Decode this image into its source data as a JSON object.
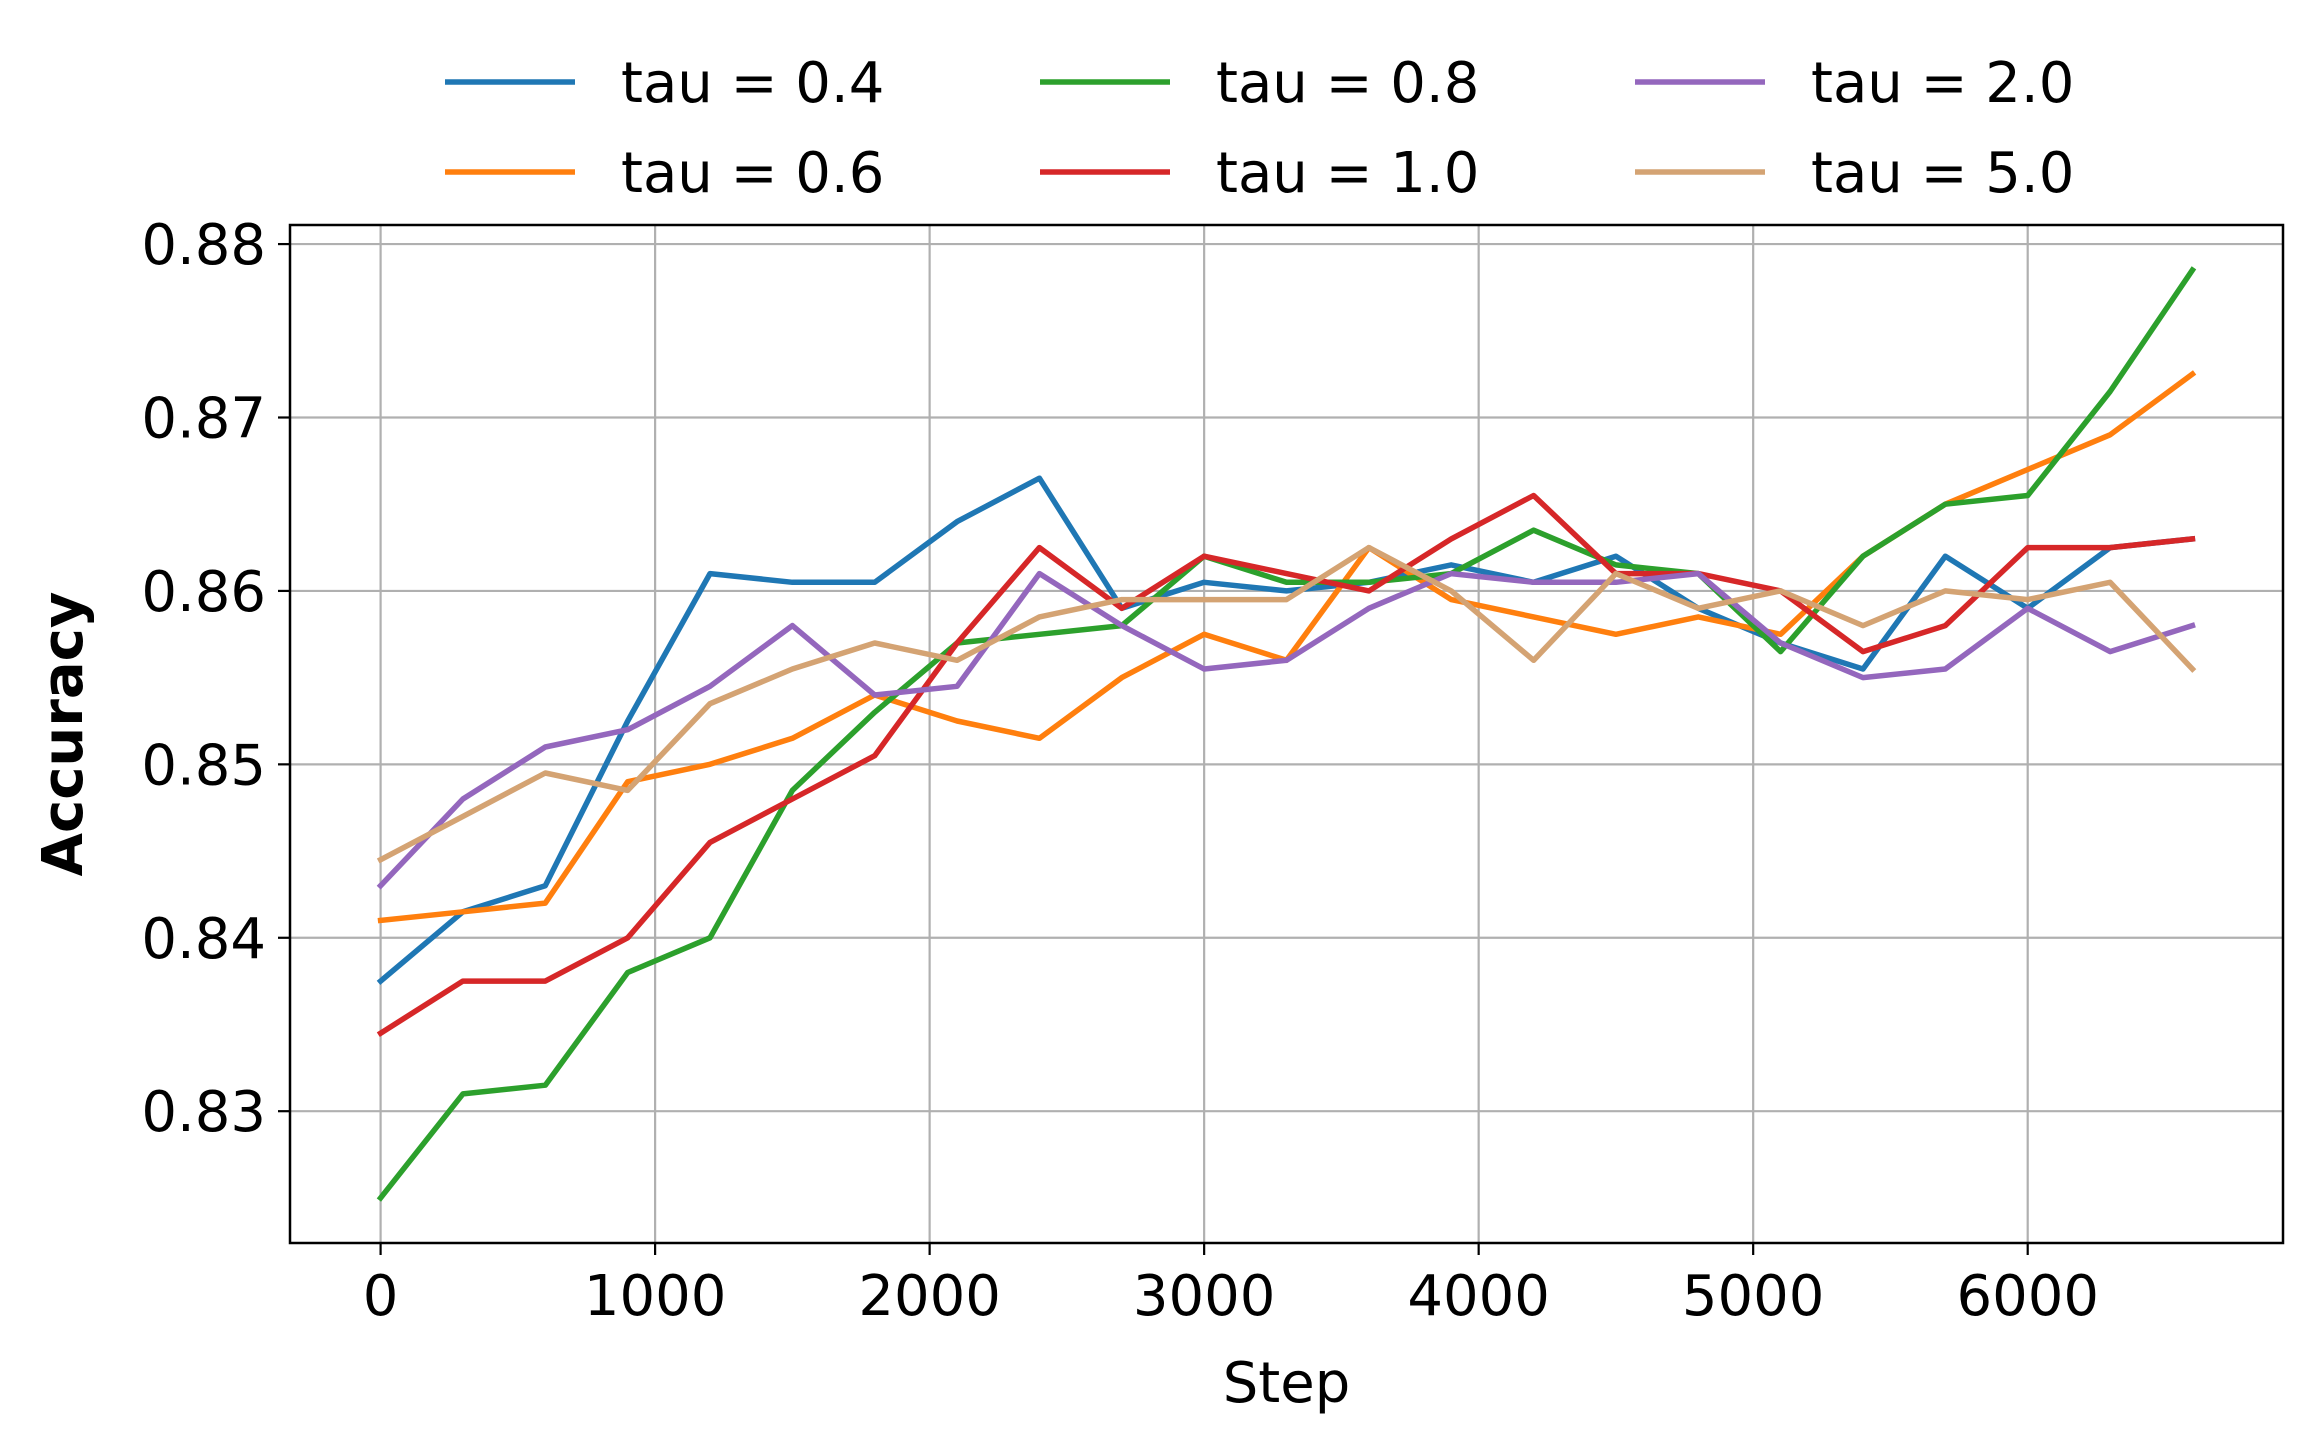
{
  "chart_data": {
    "type": "line",
    "title": "",
    "xlabel": "Step",
    "ylabel": "Accuracy",
    "xlim": [
      -330,
      6930
    ],
    "ylim": [
      0.8224,
      0.8811
    ],
    "xticks": [
      0,
      1000,
      2000,
      3000,
      4000,
      5000,
      6000
    ],
    "yticks": [
      0.83,
      0.84,
      0.85,
      0.86,
      0.87,
      0.88
    ],
    "xtick_labels": [
      "0",
      "1000",
      "2000",
      "3000",
      "4000",
      "5000",
      "6000"
    ],
    "ytick_labels": [
      "0.83",
      "0.84",
      "0.85",
      "0.86",
      "0.87",
      "0.88"
    ],
    "grid": true,
    "legend": {
      "placement": "top (outside, above plot)",
      "columns": 3
    },
    "x": [
      0,
      300,
      600,
      900,
      1200,
      1500,
      1800,
      2100,
      2400,
      2700,
      3000,
      3300,
      3600,
      3900,
      4200,
      4500,
      4800,
      5100,
      5400,
      5700,
      6000,
      6300,
      6600
    ],
    "series": [
      {
        "name": "tau = 0.4",
        "color": "#1f77b4",
        "values": [
          0.8375,
          0.8415,
          0.843,
          0.8525,
          0.861,
          0.8605,
          0.8605,
          0.864,
          0.8665,
          0.859,
          0.8605,
          0.86,
          0.8605,
          0.8615,
          0.8605,
          0.862,
          0.859,
          0.857,
          0.8555,
          0.862,
          0.859,
          0.8625,
          0.863
        ]
      },
      {
        "name": "tau = 0.6",
        "color": "#ff7f0e",
        "values": [
          0.841,
          0.8415,
          0.842,
          0.849,
          0.85,
          0.8515,
          0.854,
          0.8525,
          0.8515,
          0.855,
          0.8575,
          0.856,
          0.8625,
          0.8595,
          0.8585,
          0.8575,
          0.8585,
          0.8575,
          0.862,
          0.865,
          0.867,
          0.869,
          0.8725
        ]
      },
      {
        "name": "tau = 0.8",
        "color": "#2ca02c",
        "values": [
          0.825,
          0.831,
          0.8315,
          0.838,
          0.84,
          0.8485,
          0.853,
          0.857,
          0.8575,
          0.858,
          0.862,
          0.8605,
          0.8605,
          0.861,
          0.8635,
          0.8615,
          0.861,
          0.8565,
          0.862,
          0.865,
          0.8655,
          0.8715,
          0.8785
        ]
      },
      {
        "name": "tau = 1.0",
        "color": "#d62728",
        "values": [
          0.8345,
          0.8375,
          0.8375,
          0.84,
          0.8455,
          0.848,
          0.8505,
          0.857,
          0.8625,
          0.859,
          0.862,
          0.861,
          0.86,
          0.863,
          0.8655,
          0.861,
          0.861,
          0.86,
          0.8565,
          0.858,
          0.8625,
          0.8625,
          0.863
        ]
      },
      {
        "name": "tau = 2.0",
        "color": "#9467bd",
        "values": [
          0.843,
          0.848,
          0.851,
          0.852,
          0.8545,
          0.858,
          0.854,
          0.8545,
          0.861,
          0.858,
          0.8555,
          0.856,
          0.859,
          0.861,
          0.8605,
          0.8605,
          0.861,
          0.857,
          0.855,
          0.8555,
          0.859,
          0.8565,
          0.858
        ]
      },
      {
        "name": "tau = 5.0",
        "color": "#d4a373",
        "values": [
          0.8445,
          0.847,
          0.8495,
          0.8485,
          0.8535,
          0.8555,
          0.857,
          0.856,
          0.8585,
          0.8595,
          0.8595,
          0.8595,
          0.8625,
          0.86,
          0.856,
          0.861,
          0.859,
          0.86,
          0.858,
          0.86,
          0.8595,
          0.8605,
          0.8555
        ]
      }
    ]
  }
}
